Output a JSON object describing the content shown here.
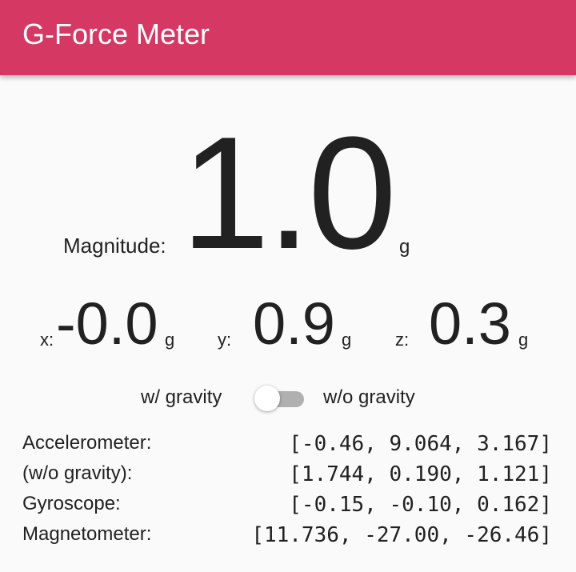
{
  "app_bar": {
    "title": "G-Force Meter",
    "color": "#d63864"
  },
  "magnitude": {
    "label": "Magnitude:",
    "value": "1.0",
    "unit": "g"
  },
  "axes": [
    {
      "label": "x:",
      "value": "-0.0",
      "unit": "g"
    },
    {
      "label": "y:",
      "value": "0.9",
      "unit": "g"
    },
    {
      "label": "z:",
      "value": "0.3",
      "unit": "g"
    }
  ],
  "gravity_toggle": {
    "left_label": "w/ gravity",
    "right_label": "w/o gravity",
    "state": "off"
  },
  "sensors": [
    {
      "name": "Accelerometer:",
      "values": "[-0.46, 9.064, 3.167]"
    },
    {
      "name": "(w/o gravity):",
      "values": "[1.744, 0.190, 1.121]"
    },
    {
      "name": "Gyroscope:",
      "values": "[-0.15, -0.10, 0.162]"
    },
    {
      "name": "Magnetometer:",
      "values": "[11.736, -27.00, -26.46]"
    }
  ]
}
